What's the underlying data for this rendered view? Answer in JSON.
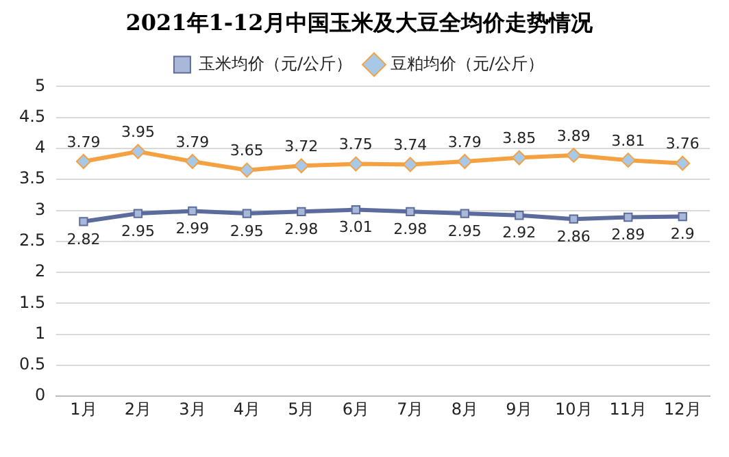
{
  "chart_data": {
    "type": "line",
    "title": "2021年1-12月中国玉米及大豆全均价走势情况",
    "categories": [
      "1月",
      "2月",
      "3月",
      "4月",
      "5月",
      "6月",
      "7月",
      "8月",
      "9月",
      "10月",
      "11月",
      "12月"
    ],
    "series": [
      {
        "name": "玉米均价（元/公斤）",
        "color": "#5b6b9c",
        "marker": "square",
        "values": [
          2.82,
          2.95,
          2.99,
          2.95,
          2.98,
          3.01,
          2.98,
          2.95,
          2.92,
          2.86,
          2.89,
          2.9
        ]
      },
      {
        "name": "豆粕均价（元/公斤）",
        "color": "#f5a142",
        "marker": "diamond",
        "values": [
          3.79,
          3.95,
          3.79,
          3.65,
          3.72,
          3.75,
          3.74,
          3.79,
          3.85,
          3.89,
          3.81,
          3.76
        ]
      }
    ],
    "ylim": [
      0,
      5
    ],
    "yticks": [
      0,
      0.5,
      1,
      1.5,
      2,
      2.5,
      3,
      3.5,
      4,
      4.5,
      5
    ],
    "grid": "y",
    "legend": "top",
    "data_labels": true,
    "line_style": "solid"
  }
}
